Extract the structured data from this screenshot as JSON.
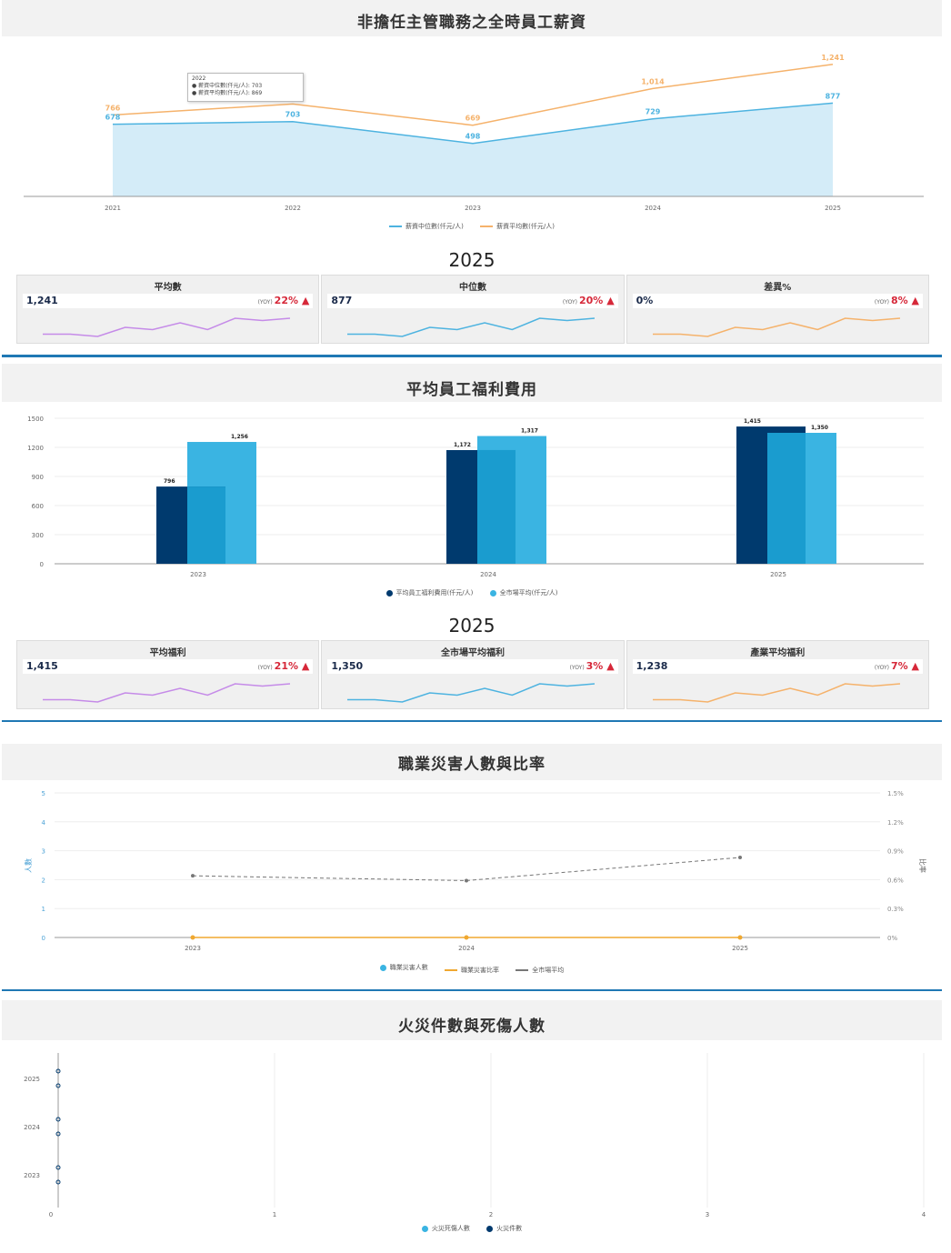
{
  "sections": {
    "salary": {
      "title": "非擔任主管職務之全時員工薪資",
      "year_heading": "2025",
      "tooltip": {
        "year": "2022",
        "line1": "● 薪資中位數(仟元/人): 703",
        "line2": "● 薪資平均數(仟元/人): 869"
      },
      "legend": [
        "薪資中位數(仟元/人)",
        "薪資平均數(仟元/人)"
      ],
      "cards": [
        {
          "label": "平均數",
          "value": "1,241",
          "yoy_prefix": "(YOY)",
          "yoy": "22%"
        },
        {
          "label": "中位數",
          "value": "877",
          "yoy_prefix": "(YOY)",
          "yoy": "20%"
        },
        {
          "label": "差異%",
          "value": "0%",
          "yoy_prefix": "(YOY)",
          "yoy": "8%"
        }
      ]
    },
    "welfare": {
      "title": "平均員工福利費用",
      "year_heading": "2025",
      "legend": [
        "平均員工福利費用(仟元/人)",
        "全市場平均(仟元/人)"
      ],
      "cards": [
        {
          "label": "平均福利",
          "value": "1,415",
          "yoy_prefix": "(YOY)",
          "yoy": "21%"
        },
        {
          "label": "全市場平均福利",
          "value": "1,350",
          "yoy_prefix": "(YOY)",
          "yoy": "3%"
        },
        {
          "label": "產業平均福利",
          "value": "1,238",
          "yoy_prefix": "(YOY)",
          "yoy": "7%"
        }
      ]
    },
    "injury": {
      "title": "職業災害人數與比率",
      "ylabel_left": "人數",
      "ylabel_right": "比率",
      "legend": [
        "職業災害人數",
        "職業災害比率",
        "全市場平均"
      ]
    },
    "fire": {
      "title": "火災件數與死傷人數",
      "legend": [
        "火災死傷人數",
        "火災件數"
      ]
    }
  },
  "colors": {
    "median_blue": "#4db3e0",
    "mean_orange": "#f5b26b",
    "navy": "#003a6e",
    "light_blue": "#3ab4e2",
    "purple": "#c58be8",
    "yoy_red": "#d62839",
    "divider": "#1f78b4",
    "injury_orange": "#f0a830",
    "market_gray": "#777777"
  },
  "chart_data": [
    {
      "type": "area",
      "id": "salary",
      "x": [
        "2021",
        "2022",
        "2023",
        "2024",
        "2025"
      ],
      "series": [
        {
          "name": "薪資中位數(仟元/人)",
          "values": [
            678,
            703,
            498,
            729,
            877
          ]
        },
        {
          "name": "薪資平均數(仟元/人)",
          "values": [
            766,
            869,
            669,
            1014,
            1241
          ]
        }
      ],
      "data_labels": {
        "median": [
          "678",
          "703",
          "498",
          "729",
          "877"
        ],
        "mean": [
          "766",
          "869",
          "669",
          "1,014",
          "1,241"
        ]
      },
      "ylim": [
        0,
        1400
      ]
    },
    {
      "type": "bar",
      "id": "welfare",
      "categories": [
        "2023",
        "2024",
        "2025"
      ],
      "series": [
        {
          "name": "平均員工福利費用(仟元/人)",
          "values": [
            796,
            1172,
            1415
          ]
        },
        {
          "name": "全市場平均(仟元/人)",
          "values": [
            1256,
            1317,
            1350
          ]
        }
      ],
      "data_labels": {
        "own": [
          "796",
          "1,172",
          "1,415"
        ],
        "market": [
          "1,256",
          "1,317",
          "1,350"
        ]
      },
      "yticks": [
        "0",
        "300",
        "600",
        "900",
        "1200",
        "1500"
      ],
      "ylim": [
        0,
        1500
      ]
    },
    {
      "type": "line",
      "id": "injury",
      "categories": [
        "2023",
        "2024",
        "2025"
      ],
      "series": [
        {
          "name": "職業災害人數",
          "values": [
            0,
            0,
            0
          ]
        },
        {
          "name": "職業災害比率",
          "values": [
            0,
            0,
            0
          ]
        },
        {
          "name": "全市場平均",
          "values": [
            0.64,
            0.59,
            0.83
          ]
        }
      ],
      "yticks_left": [
        "0",
        "1",
        "2",
        "3",
        "4",
        "5"
      ],
      "yticks_right": [
        "0%",
        "0.3%",
        "0.6%",
        "0.9%",
        "1.2%",
        "1.5%"
      ],
      "ylim_left": [
        0,
        5
      ],
      "ylim_right": [
        0,
        1.5
      ]
    },
    {
      "type": "bar",
      "id": "fire",
      "orientation": "horizontal",
      "categories": [
        "2025",
        "2024",
        "2023"
      ],
      "series": [
        {
          "name": "火災死傷人數",
          "values": [
            0,
            0,
            0
          ]
        },
        {
          "name": "火災件數",
          "values": [
            0,
            0,
            0
          ]
        }
      ],
      "xticks": [
        "0",
        "1",
        "2",
        "3",
        "4"
      ],
      "xlim": [
        0,
        4
      ]
    }
  ],
  "sparklines": {
    "values": [
      3,
      3,
      2,
      6,
      5,
      8,
      5,
      10,
      9,
      10
    ]
  }
}
